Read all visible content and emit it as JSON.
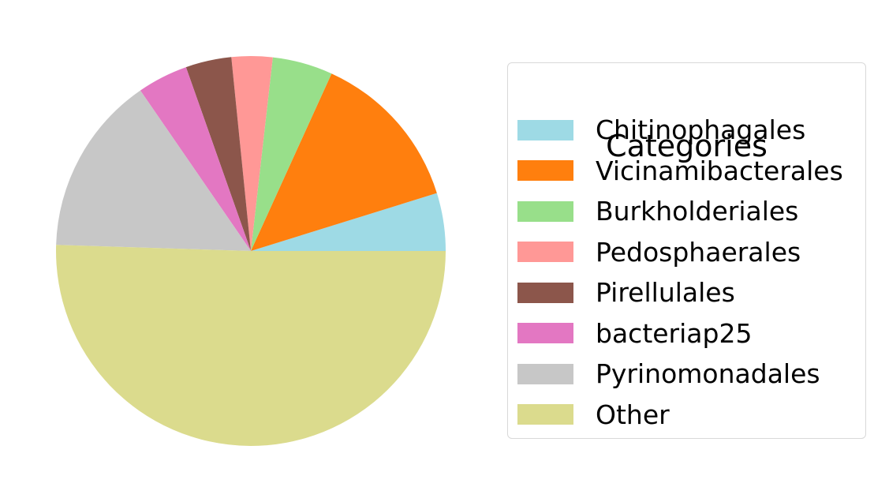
{
  "chart_data": {
    "type": "pie",
    "title": "",
    "legend": {
      "title": "Categories",
      "placement": "right"
    },
    "start_angle_deg": 0,
    "direction": "counterclockwise",
    "slices": [
      {
        "label": "Chitinophagales",
        "value": 4.8,
        "color": "#9edae5"
      },
      {
        "label": "Vicinamibacterales",
        "value": 13.4,
        "color": "#ff7f0e"
      },
      {
        "label": "Burkholderiales",
        "value": 5.0,
        "color": "#98df8a"
      },
      {
        "label": "Pedosphaerales",
        "value": 3.4,
        "color": "#ff9896"
      },
      {
        "label": "Pirellulales",
        "value": 3.8,
        "color": "#8c564b"
      },
      {
        "label": "bacteriap25",
        "value": 4.2,
        "color": "#e377c2"
      },
      {
        "label": "Pyrinomonadales",
        "value": 14.9,
        "color": "#c7c7c7"
      },
      {
        "label": "Other",
        "value": 50.5,
        "color": "#dbdb8d"
      }
    ]
  }
}
